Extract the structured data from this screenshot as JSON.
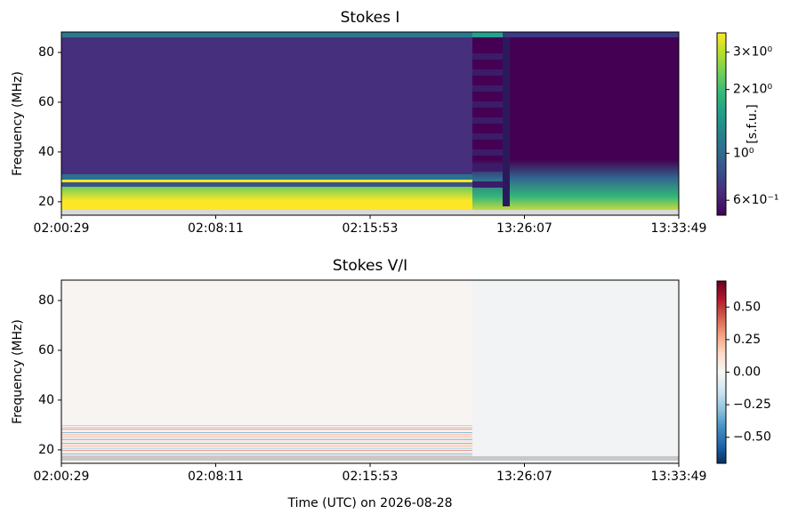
{
  "chart_data": [
    {
      "type": "heatmap",
      "title": "Stokes I",
      "y_label": "Frequency (MHz)",
      "xticks": [
        "02:00:29",
        "02:08:11",
        "02:15:53",
        "13:26:07",
        "13:33:49"
      ],
      "ylim": [
        14.6,
        88.2
      ],
      "yticks": [
        20,
        40,
        60,
        80
      ],
      "colorbar": {
        "label": "[s.f.u.]",
        "scale": "log",
        "lim": [
          0.51,
          3.7
        ],
        "cmap": "viridis",
        "ticks": [
          {
            "value": 3,
            "label": "3×10⁰"
          },
          {
            "value": 2,
            "label": "2×10⁰"
          },
          {
            "value": 1,
            "label": "10⁰"
          },
          {
            "value": 0.6,
            "label": "6×10⁻¹"
          }
        ]
      }
    },
    {
      "type": "heatmap",
      "title": "Stokes V/I",
      "y_label": "Frequency (MHz)",
      "x_label": "Time (UTC) on 2026-08-28",
      "xticks": [
        "02:00:29",
        "02:08:11",
        "02:15:53",
        "13:26:07",
        "13:33:49"
      ],
      "ylim": [
        14.6,
        88.2
      ],
      "yticks": [
        20,
        40,
        60,
        80
      ],
      "colorbar": {
        "label": null,
        "scale": "linear",
        "lim": [
          -0.7,
          0.7
        ],
        "cmap": "RdBu_r",
        "ticks": [
          {
            "value": 0.5,
            "label": "0.50"
          },
          {
            "value": 0.25,
            "label": "0.25"
          },
          {
            "value": 0,
            "label": "0.00"
          },
          {
            "value": -0.25,
            "label": "−0.25"
          },
          {
            "value": -0.5,
            "label": "−0.50"
          }
        ]
      }
    }
  ]
}
